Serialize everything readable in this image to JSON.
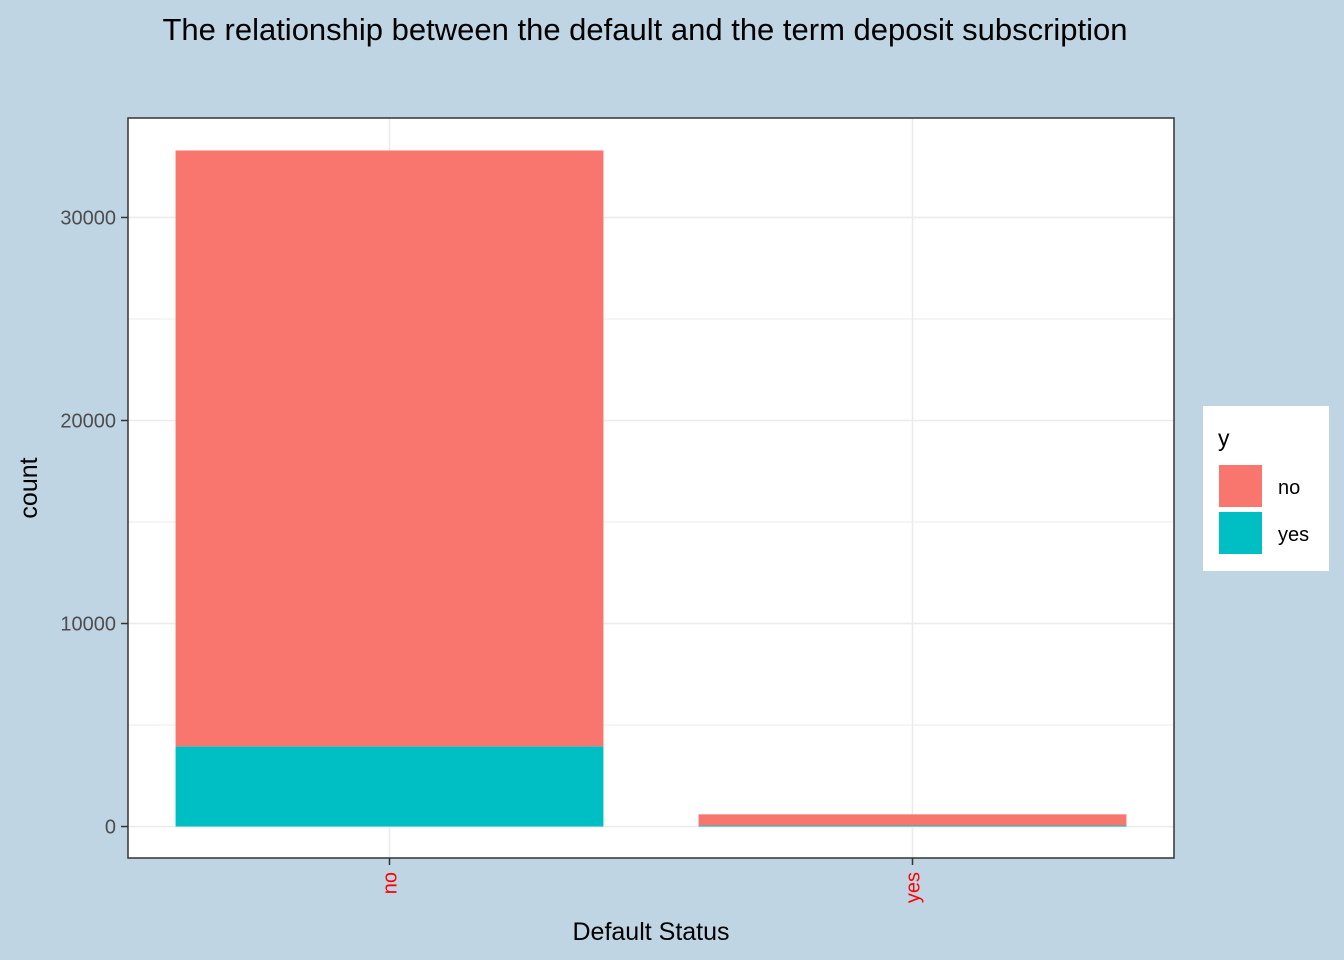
{
  "chart_data": {
    "type": "bar",
    "stacked": true,
    "title": "The relationship between the default and the term deposit subscription",
    "xlabel": "Default Status",
    "ylabel": "count",
    "categories": [
      "no",
      "yes"
    ],
    "series": [
      {
        "name": "no",
        "color": "#f8766d",
        "values": [
          29350,
          550
        ]
      },
      {
        "name": "yes",
        "color": "#00bfc4",
        "values": [
          3950,
          50
        ]
      }
    ],
    "yticks": [
      0,
      10000,
      20000,
      30000
    ],
    "ylim": [
      -1550,
      34900
    ],
    "grid": true,
    "legend": {
      "title": "y",
      "position": "right",
      "items": [
        "no",
        "yes"
      ]
    },
    "tick_label_color_x": "#ff0000"
  }
}
